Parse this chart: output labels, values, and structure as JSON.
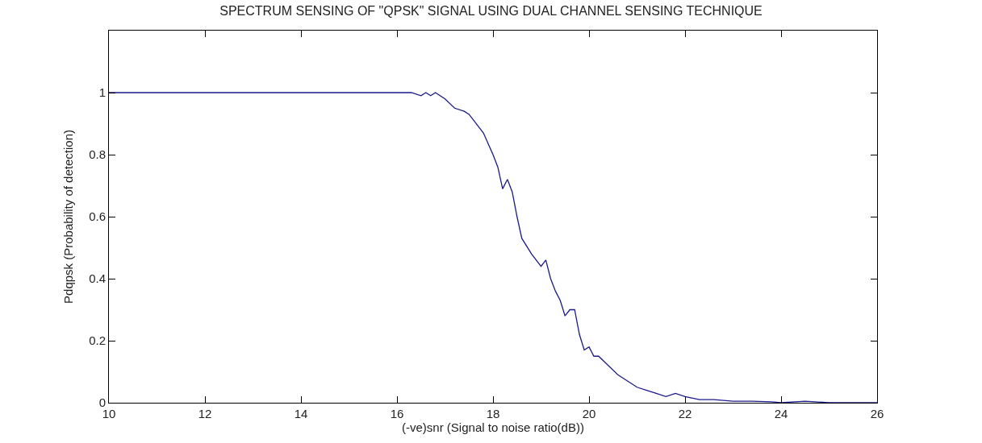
{
  "chart_data": {
    "type": "line",
    "title": "SPECTRUM SENSING OF \"QPSK\" SIGNAL USING DUAL CHANNEL SENSING TECHNIQUE",
    "xlabel": "(-ve)snr (Signal to noise ratio(dB))",
    "ylabel": "Pdqpsk (Probability of detection)",
    "xlim": [
      10,
      26
    ],
    "xticks": [
      10,
      12,
      14,
      16,
      18,
      20,
      22,
      24,
      26
    ],
    "ylim": [
      0,
      1.2
    ],
    "yticks": [
      0,
      0.2,
      0.4,
      0.6,
      0.8,
      1
    ],
    "series": [
      {
        "color": "#1a1a8c",
        "x": [
          10,
          16.3,
          16.5,
          16.6,
          16.7,
          16.8,
          17.0,
          17.2,
          17.4,
          17.5,
          17.7,
          17.8,
          18.0,
          18.1,
          18.2,
          18.3,
          18.4,
          18.5,
          18.6,
          18.8,
          19.0,
          19.1,
          19.2,
          19.3,
          19.4,
          19.5,
          19.6,
          19.7,
          19.8,
          19.9,
          20.0,
          20.1,
          20.2,
          20.4,
          20.6,
          20.8,
          21.0,
          21.2,
          21.4,
          21.6,
          21.8,
          22.0,
          22.3,
          22.6,
          23.0,
          23.4,
          23.8,
          24.0,
          24.5,
          25.0,
          26
        ],
        "values": [
          1,
          1,
          0.99,
          1,
          0.99,
          1,
          0.98,
          0.95,
          0.94,
          0.93,
          0.89,
          0.87,
          0.8,
          0.76,
          0.69,
          0.72,
          0.68,
          0.6,
          0.53,
          0.48,
          0.44,
          0.46,
          0.4,
          0.36,
          0.33,
          0.28,
          0.3,
          0.3,
          0.22,
          0.17,
          0.18,
          0.15,
          0.15,
          0.12,
          0.09,
          0.07,
          0.05,
          0.04,
          0.03,
          0.02,
          0.03,
          0.02,
          0.01,
          0.01,
          0.005,
          0.005,
          0.003,
          0,
          0.005,
          0,
          0
        ]
      }
    ]
  }
}
